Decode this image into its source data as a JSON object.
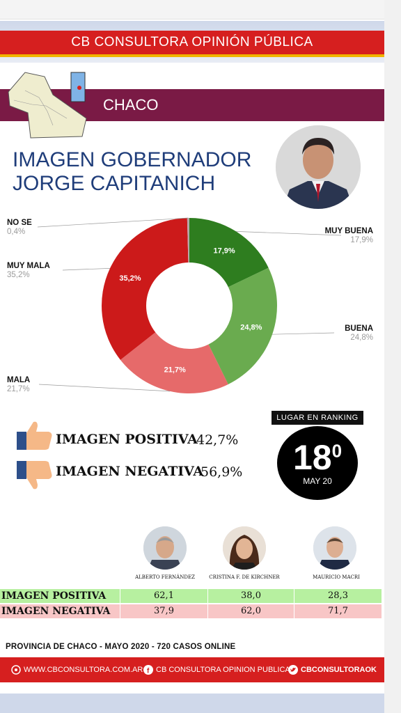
{
  "header": {
    "title": "CB CONSULTORA OPINIÓN PÚBLICA"
  },
  "region": {
    "name": "CHACO"
  },
  "headline": {
    "line1": "IMAGEN GOBERNADOR",
    "line2": "JORGE CAPITANICH"
  },
  "chart_data": {
    "type": "pie",
    "variant": "donut",
    "categories": [
      "MUY BUENA",
      "BUENA",
      "MALA",
      "MUY MALA",
      "NO SE"
    ],
    "values": [
      17.9,
      24.8,
      21.7,
      35.2,
      0.4
    ],
    "value_labels": [
      "17,9%",
      "24,8%",
      "21,7%",
      "35,2%",
      "0,4%"
    ],
    "colors": [
      "#2e7d1f",
      "#6aab4f",
      "#e66a6a",
      "#cc1a1a",
      "#b5a8a8"
    ]
  },
  "summary": {
    "positive_label": "IMAGEN POSITIVA",
    "positive_value": "42,7%",
    "negative_label": "IMAGEN NEGATIVA",
    "negative_value": "56,9%"
  },
  "ranking": {
    "label": "LUGAR EN RANKING",
    "value": "18",
    "suffix": "0",
    "date": "MAY 20"
  },
  "comparison": {
    "candidates": [
      "ALBERTO FERNÁNDEZ",
      "CRISTINA F. DE KIRCHNER",
      "MAURICIO MACRI"
    ],
    "rows": [
      {
        "label": "IMAGEN POSITIVA",
        "values": [
          "62,1",
          "38,0",
          "28,3"
        ],
        "color": "#b7f0a0"
      },
      {
        "label": "IMAGEN NEGATIVA",
        "values": [
          "37,9",
          "62,0",
          "71,7"
        ],
        "color": "#f8c6c6"
      }
    ]
  },
  "footer": {
    "note": "PROVINCIA DE CHACO - MAYO 2020 -  720 CASOS ONLINE",
    "website": "WWW.CBCONSULTORA.COM.AR",
    "facebook": "CB CONSULTORA OPINION PUBLICA",
    "twitter": "CBCONSULTORAOK"
  }
}
